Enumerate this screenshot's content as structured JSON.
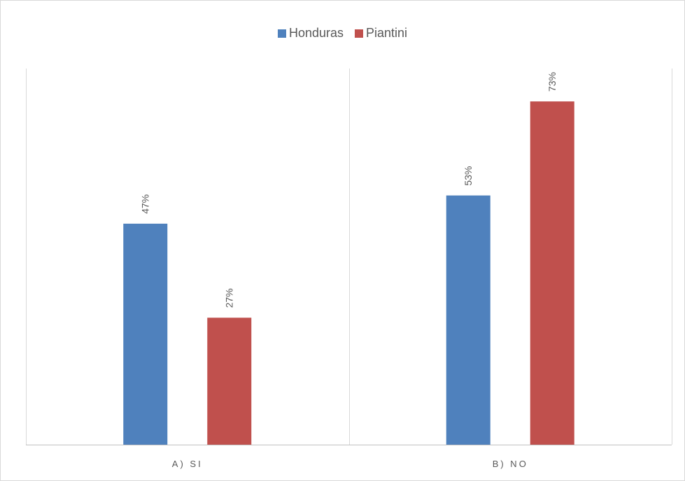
{
  "chart_data": {
    "type": "bar",
    "categories": [
      "A) SI",
      "B) NO"
    ],
    "series": [
      {
        "name": "Honduras",
        "values": [
          47,
          53
        ],
        "color": "#4f81bd"
      },
      {
        "name": "Piantini",
        "values": [
          27,
          73
        ],
        "color": "#c0504d"
      }
    ],
    "value_format": "percent",
    "data_labels": {
      "Honduras": [
        "47%",
        "53%"
      ],
      "Piantini": [
        "27%",
        "73%"
      ]
    },
    "legend_position": "top",
    "ylim": [
      0,
      80
    ],
    "grid": false,
    "category_separators": true
  }
}
